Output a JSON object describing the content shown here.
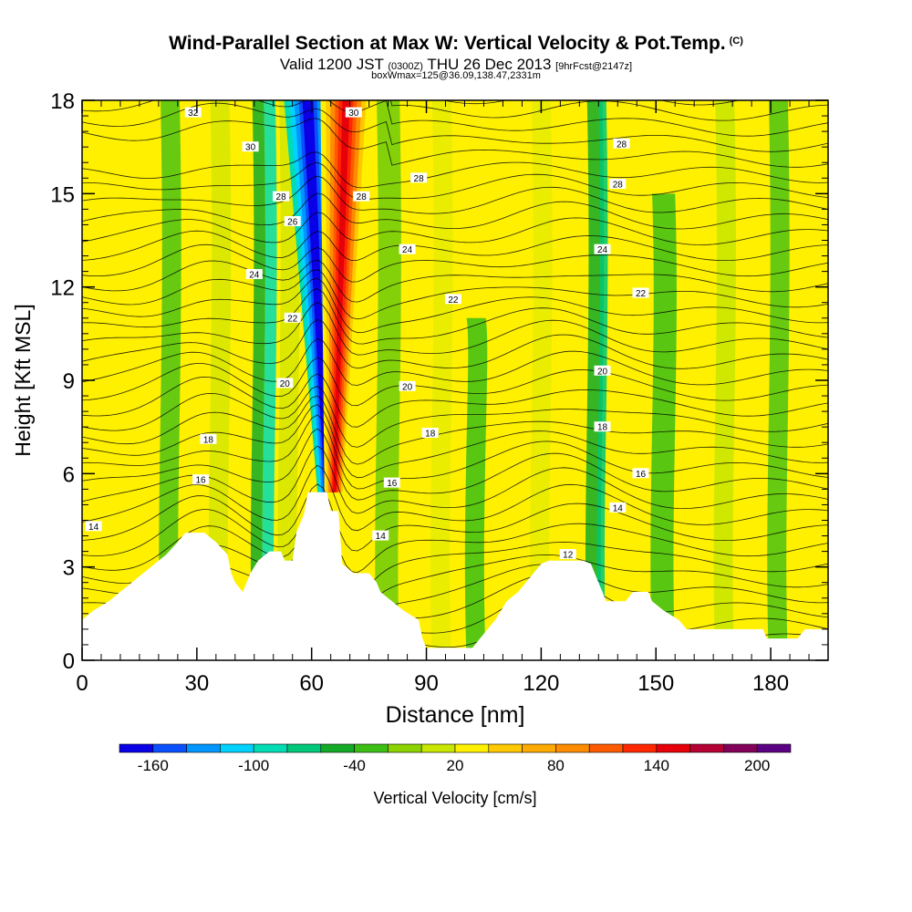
{
  "title": "Wind-Parallel Section at Max W: Vertical Velocity & Pot.Temp.",
  "title_mark": "(C)",
  "subtitle": {
    "valid": "Valid 1200 JST",
    "utc": "(0300Z)",
    "date": "THU 26 Dec 2013",
    "forecast": "[9hrFcst@2147z]"
  },
  "box_info": "boxWmax=125@36.09,138.47,2331m",
  "chart_data": {
    "type": "heatmap",
    "xlabel": "Distance [nm]",
    "ylabel": "Height [Kft MSL]",
    "xlim": [
      0,
      195
    ],
    "ylim": [
      0,
      18
    ],
    "x_ticks": [
      0,
      30,
      60,
      90,
      120,
      150,
      180
    ],
    "y_ticks": [
      0,
      3,
      6,
      9,
      12,
      15,
      18
    ],
    "colorbar": {
      "label": "Vertical Velocity [cm/s]",
      "tick_labels": [
        "-160",
        "-100",
        "-40",
        "20",
        "80",
        "140",
        "200"
      ],
      "tick_values": [
        -160,
        -100,
        -40,
        20,
        80,
        140,
        200
      ],
      "colors": [
        "#0a00e6",
        "#0a50ff",
        "#0096ff",
        "#00d2ff",
        "#00dcb4",
        "#00c878",
        "#14aa28",
        "#3cbe14",
        "#8cd200",
        "#c8e600",
        "#fff000",
        "#ffc800",
        "#ffaa00",
        "#ff8c00",
        "#ff5a00",
        "#ff2800",
        "#e6000a",
        "#b40032",
        "#82005a",
        "#5a0082"
      ]
    },
    "background_level": "20",
    "updraft_bands": [
      {
        "x": 23,
        "top": 18,
        "level": "-20",
        "color": "#4cc314",
        "width": 5
      },
      {
        "x": 36,
        "top": 18,
        "level": "40",
        "color": "#d6e600",
        "width": 5
      },
      {
        "x": 46,
        "top": 18,
        "level": "-60",
        "color": "#14aa28",
        "width": 3
      },
      {
        "x": 49,
        "top": 18,
        "level": "-100",
        "color": "#00dcb4",
        "width": 3
      },
      {
        "x": 54,
        "top": 18,
        "level": "40",
        "color": "#d6e600",
        "width": 5
      },
      {
        "x": 80,
        "top": 18,
        "level": "0",
        "color": "#6ecb0a",
        "width": 6
      },
      {
        "x": 94,
        "top": 18,
        "level": "40",
        "color": "#e6ec00",
        "width": 5
      },
      {
        "x": 103,
        "top": 11,
        "level": "-40",
        "color": "#3cbe14",
        "width": 5
      },
      {
        "x": 120,
        "top": 18,
        "level": "40",
        "color": "#e6ec00",
        "width": 5
      },
      {
        "x": 134,
        "top": 18,
        "level": "-60",
        "color": "#14aa28",
        "width": 4
      },
      {
        "x": 136,
        "top": 18,
        "level": "-120",
        "color": "#00c878",
        "width": 2
      },
      {
        "x": 143,
        "top": 18,
        "level": "60",
        "color": "#fff000",
        "width": 5
      },
      {
        "x": 152,
        "top": 15,
        "level": "-40",
        "color": "#3cbe14",
        "width": 6
      },
      {
        "x": 168,
        "top": 18,
        "level": "40",
        "color": "#c8e600",
        "width": 5
      },
      {
        "x": 182,
        "top": 18,
        "level": "-20",
        "color": "#4cc314",
        "width": 5
      }
    ],
    "max_downdraft": {
      "level": "-160",
      "x_base": 64,
      "x_top": 59,
      "color": "#0a00e6"
    },
    "max_updraft": {
      "level": "200",
      "x_base": 66,
      "x_top": 69,
      "color": "#e6000a"
    },
    "terrain_kft": [
      [
        0,
        1.3
      ],
      [
        3,
        1.6
      ],
      [
        7,
        1.9
      ],
      [
        10,
        2.2
      ],
      [
        13,
        2.5
      ],
      [
        16,
        2.8
      ],
      [
        19,
        3.1
      ],
      [
        22,
        3.4
      ],
      [
        25,
        3.8
      ],
      [
        27,
        4.1
      ],
      [
        32,
        4.1
      ],
      [
        35,
        3.8
      ],
      [
        38,
        3.4
      ],
      [
        39,
        2.8
      ],
      [
        40,
        2.5
      ],
      [
        42,
        2.2
      ],
      [
        44,
        2.8
      ],
      [
        46,
        3.2
      ],
      [
        49,
        3.5
      ],
      [
        52,
        3.5
      ],
      [
        53,
        3.2
      ],
      [
        55,
        3.2
      ],
      [
        56,
        4.1
      ],
      [
        58,
        4.7
      ],
      [
        59,
        5.4
      ],
      [
        64,
        5.4
      ],
      [
        65,
        4.8
      ],
      [
        67,
        4.8
      ],
      [
        68,
        3.1
      ],
      [
        71,
        2.8
      ],
      [
        75,
        2.8
      ],
      [
        77,
        2.5
      ],
      [
        78,
        2.2
      ],
      [
        81,
        1.9
      ],
      [
        84,
        1.6
      ],
      [
        88,
        1.3
      ],
      [
        89,
        0.7
      ],
      [
        90,
        0.4
      ],
      [
        94,
        0.4
      ],
      [
        96,
        0.4
      ],
      [
        102,
        0.4
      ],
      [
        104,
        0.7
      ],
      [
        106,
        1.0
      ],
      [
        108,
        1.3
      ],
      [
        111,
        1.9
      ],
      [
        114,
        2.2
      ],
      [
        116,
        2.5
      ],
      [
        118,
        2.8
      ],
      [
        120,
        3.1
      ],
      [
        122,
        3.2
      ],
      [
        131,
        3.2
      ],
      [
        133,
        3.1
      ],
      [
        134,
        2.8
      ],
      [
        137,
        1.9
      ],
      [
        142,
        1.9
      ],
      [
        144,
        2.2
      ],
      [
        148,
        2.2
      ],
      [
        149,
        1.9
      ],
      [
        152,
        1.6
      ],
      [
        156,
        1.3
      ],
      [
        158,
        1.0
      ],
      [
        173,
        1.0
      ],
      [
        178,
        1.0
      ],
      [
        179,
        0.7
      ],
      [
        187,
        0.7
      ],
      [
        189,
        1.0
      ],
      [
        195,
        1.0
      ]
    ],
    "isentrope_labels": [
      {
        "text": "14",
        "x": 3,
        "y": 4.3
      },
      {
        "text": "16",
        "x": 31,
        "y": 5.8
      },
      {
        "text": "18",
        "x": 33,
        "y": 7.1
      },
      {
        "text": "20",
        "x": 53,
        "y": 8.9
      },
      {
        "text": "22",
        "x": 55,
        "y": 11.0
      },
      {
        "text": "24",
        "x": 45,
        "y": 12.4
      },
      {
        "text": "26",
        "x": 55,
        "y": 14.1
      },
      {
        "text": "28",
        "x": 52,
        "y": 14.9
      },
      {
        "text": "30",
        "x": 44,
        "y": 16.5
      },
      {
        "text": "32",
        "x": 29,
        "y": 17.6
      },
      {
        "text": "30",
        "x": 71,
        "y": 17.6
      },
      {
        "text": "28",
        "x": 73,
        "y": 14.9
      },
      {
        "text": "28",
        "x": 88,
        "y": 15.5
      },
      {
        "text": "24",
        "x": 85,
        "y": 13.2
      },
      {
        "text": "22",
        "x": 97,
        "y": 11.6
      },
      {
        "text": "20",
        "x": 85,
        "y": 8.8
      },
      {
        "text": "18",
        "x": 91,
        "y": 7.3
      },
      {
        "text": "16",
        "x": 81,
        "y": 5.7
      },
      {
        "text": "14",
        "x": 78,
        "y": 4.0
      },
      {
        "text": "12",
        "x": 127,
        "y": 3.4
      },
      {
        "text": "14",
        "x": 140,
        "y": 4.9
      },
      {
        "text": "16",
        "x": 146,
        "y": 6.0
      },
      {
        "text": "18",
        "x": 136,
        "y": 7.5
      },
      {
        "text": "20",
        "x": 136,
        "y": 9.3
      },
      {
        "text": "24",
        "x": 136,
        "y": 13.2
      },
      {
        "text": "22",
        "x": 146,
        "y": 11.8
      },
      {
        "text": "28",
        "x": 140,
        "y": 15.3
      },
      {
        "text": "28",
        "x": 141,
        "y": 16.6
      }
    ]
  }
}
